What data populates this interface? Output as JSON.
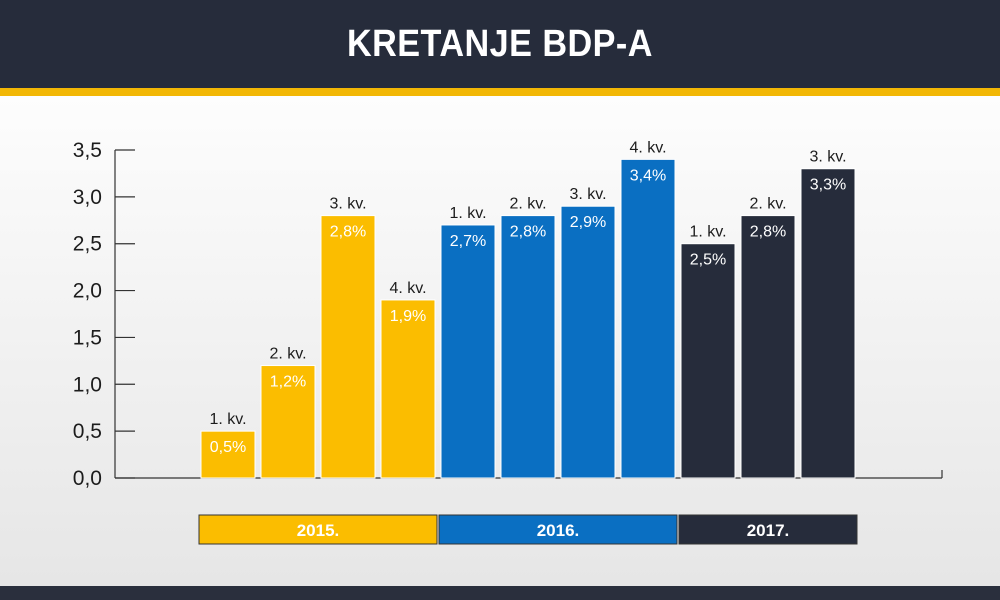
{
  "header": {
    "title": "KRETANJE BDP-A"
  },
  "colors": {
    "y2015": "#fbbd00",
    "y2016": "#0a6fc2",
    "y2017": "#262c3b",
    "y2015_text": "#ffffff",
    "y2016_text": "#ffffff",
    "y2017_text": "#ffffff"
  },
  "chart_data": {
    "type": "bar",
    "title": "KRETANJE BDP-A",
    "xlabel": "",
    "ylabel": "",
    "ylim": [
      0,
      3.5
    ],
    "yticks": [
      "0,0",
      "0,5",
      "1,0",
      "1,5",
      "2,0",
      "2,5",
      "3,0",
      "3,5"
    ],
    "grid": false,
    "groups": [
      {
        "year": "2015.",
        "color_key": "y2015",
        "bars": [
          {
            "category": "1. kv.",
            "value": 0.5,
            "label": "0,5%"
          },
          {
            "category": "2. kv.",
            "value": 1.2,
            "label": "1,2%"
          },
          {
            "category": "3. kv.",
            "value": 2.8,
            "label": "2,8%"
          },
          {
            "category": "4. kv.",
            "value": 1.9,
            "label": "1,9%"
          }
        ]
      },
      {
        "year": "2016.",
        "color_key": "y2016",
        "bars": [
          {
            "category": "1. kv.",
            "value": 2.7,
            "label": "2,7%"
          },
          {
            "category": "2. kv.",
            "value": 2.8,
            "label": "2,8%"
          },
          {
            "category": "3. kv.",
            "value": 2.9,
            "label": "2,9%"
          },
          {
            "category": "4. kv.",
            "value": 3.4,
            "label": "3,4%"
          }
        ]
      },
      {
        "year": "2017.",
        "color_key": "y2017",
        "bars": [
          {
            "category": "1. kv.",
            "value": 2.5,
            "label": "2,5%"
          },
          {
            "category": "2. kv.",
            "value": 2.8,
            "label": "2,8%"
          },
          {
            "category": "3. kv.",
            "value": 3.3,
            "label": "3,3%"
          }
        ]
      }
    ]
  }
}
